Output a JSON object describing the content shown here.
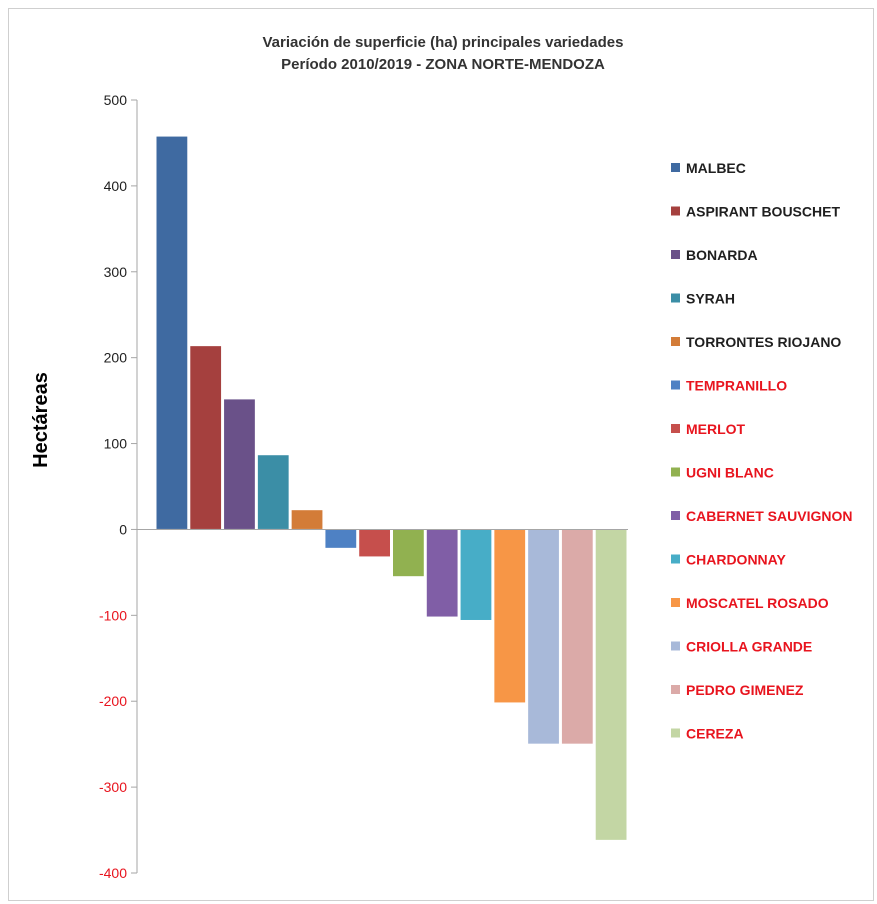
{
  "chart_data": {
    "type": "bar",
    "title": [
      "Variación de superficie (ha) principales variedades",
      "Período 2010/2019 - ZONA NORTE-MENDOZA"
    ],
    "xlabel": "",
    "ylabel": "Hectáreas",
    "ylim": [
      -400,
      500
    ],
    "yticks": [
      500,
      400,
      300,
      200,
      100,
      0,
      -100,
      -200,
      -300,
      -400
    ],
    "tick_colors": {
      "positive": "#1f1f1f",
      "negative": "#e8141e"
    },
    "grid": false,
    "legend_position": "right",
    "categories": [
      "MALBEC",
      "ASPIRANT BOUSCHET",
      "BONARDA",
      "SYRAH",
      "TORRONTES RIOJANO",
      "TEMPRANILLO",
      "MERLOT",
      "UGNI BLANC",
      "CABERNET SAUVIGNON",
      "CHARDONNAY",
      "MOSCATEL ROSADO",
      "CRIOLLA GRANDE",
      "PEDRO GIMENEZ",
      "CEREZA"
    ],
    "values": [
      458,
      214,
      152,
      87,
      23,
      -22,
      -32,
      -55,
      -102,
      -106,
      -202,
      -250,
      -250,
      -362
    ],
    "colors": [
      "#3f6aa1",
      "#a5403e",
      "#6a5189",
      "#3b8ea6",
      "#d37c38",
      "#4e81c4",
      "#c64f4c",
      "#91b150",
      "#805ea6",
      "#47adc7",
      "#f79646",
      "#a8b9d9",
      "#dbaaa8",
      "#c3d6a4"
    ],
    "legend_label_colors": [
      "#1f1f1f",
      "#1f1f1f",
      "#1f1f1f",
      "#1f1f1f",
      "#1f1f1f",
      "#e8141e",
      "#e8141e",
      "#e8141e",
      "#e8141e",
      "#e8141e",
      "#e8141e",
      "#e8141e",
      "#e8141e",
      "#e8141e"
    ]
  }
}
